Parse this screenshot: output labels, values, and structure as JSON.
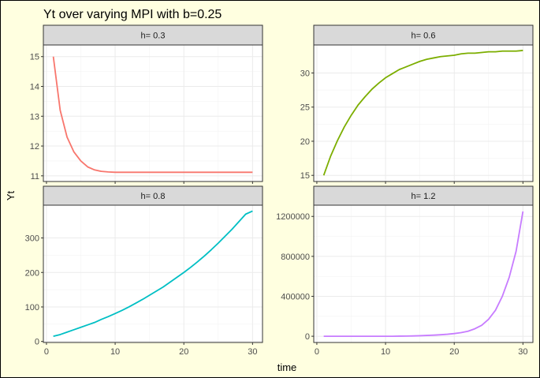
{
  "title": "Yt over varying MPI with b=0.25",
  "xlabel": "time",
  "ylabel": "Yt",
  "colors": {
    "strip_bg": "#d9d9d9",
    "panel_bg": "#ffffff",
    "grid": "#ebebeb",
    "page_bg": "#ffffe0"
  },
  "chart_data": [
    {
      "type": "line",
      "strip": "h= 0.3",
      "color": "#f8766d",
      "x": [
        1,
        2,
        3,
        4,
        5,
        6,
        7,
        8,
        9,
        10,
        11,
        12,
        13,
        14,
        15,
        16,
        17,
        18,
        19,
        20,
        21,
        22,
        23,
        24,
        25,
        26,
        27,
        28,
        29,
        30
      ],
      "values": [
        15.0,
        13.2,
        12.3,
        11.8,
        11.5,
        11.3,
        11.2,
        11.15,
        11.13,
        11.12,
        11.12,
        11.12,
        11.12,
        11.12,
        11.12,
        11.12,
        11.12,
        11.12,
        11.12,
        11.12,
        11.12,
        11.12,
        11.12,
        11.12,
        11.12,
        11.12,
        11.12,
        11.12,
        11.12,
        11.12
      ],
      "xlim": [
        -0.45,
        31.45
      ],
      "ylim": [
        10.81,
        15.39
      ],
      "xticks": [
        0,
        10,
        20,
        30
      ],
      "yticks": [
        11,
        12,
        13,
        14,
        15
      ],
      "ytick_labels": [
        "11",
        "12",
        "13",
        "14",
        "15"
      ],
      "show_x_ticklabels": false,
      "show_y_ticklabels": true
    },
    {
      "type": "line",
      "strip": "h= 0.6",
      "color": "#7cae00",
      "x": [
        1,
        2,
        3,
        4,
        5,
        6,
        7,
        8,
        9,
        10,
        11,
        12,
        13,
        14,
        15,
        16,
        17,
        18,
        19,
        20,
        21,
        22,
        23,
        24,
        25,
        26,
        27,
        28,
        29,
        30
      ],
      "values": [
        15.0,
        17.8,
        20.1,
        22.1,
        23.8,
        25.3,
        26.5,
        27.6,
        28.5,
        29.3,
        29.9,
        30.5,
        30.9,
        31.3,
        31.7,
        32.0,
        32.2,
        32.4,
        32.5,
        32.6,
        32.8,
        32.9,
        32.9,
        33.0,
        33.1,
        33.1,
        33.2,
        33.2,
        33.2,
        33.3
      ],
      "xlim": [
        -0.45,
        31.45
      ],
      "ylim": [
        14.1,
        34.1
      ],
      "xticks": [
        0,
        10,
        20,
        30
      ],
      "yticks": [
        15,
        20,
        25,
        30
      ],
      "ytick_labels": [
        "15",
        "20",
        "25",
        "30"
      ],
      "show_x_ticklabels": false,
      "show_y_ticklabels": true
    },
    {
      "type": "line",
      "strip": "h= 0.8",
      "color": "#00bfc4",
      "x": [
        1,
        2,
        3,
        4,
        5,
        6,
        7,
        8,
        9,
        10,
        11,
        12,
        13,
        14,
        15,
        16,
        17,
        18,
        19,
        20,
        21,
        22,
        23,
        24,
        25,
        26,
        27,
        28,
        29,
        30
      ],
      "values": [
        15,
        20,
        27,
        34,
        41,
        48,
        55,
        64,
        72,
        81,
        90,
        100,
        111,
        122,
        134,
        146,
        158,
        172,
        186,
        200,
        215,
        231,
        248,
        266,
        285,
        305,
        325,
        347,
        369,
        378
      ],
      "xlim": [
        -0.45,
        31.45
      ],
      "ylim": [
        -3,
        395
      ],
      "xticks": [
        0,
        10,
        20,
        30
      ],
      "yticks": [
        0,
        100,
        200,
        300
      ],
      "ytick_labels": [
        "0",
        "100",
        "200",
        "300"
      ],
      "show_x_ticklabels": true,
      "show_y_ticklabels": true
    },
    {
      "type": "line",
      "strip": "h= 1.2",
      "color": "#c77cff",
      "x": [
        1,
        2,
        3,
        4,
        5,
        6,
        7,
        8,
        9,
        10,
        11,
        12,
        13,
        14,
        15,
        16,
        17,
        18,
        19,
        20,
        21,
        22,
        23,
        24,
        25,
        26,
        27,
        28,
        29,
        30
      ],
      "values": [
        0,
        0,
        0,
        0,
        0,
        0,
        0,
        0,
        0,
        0,
        0,
        1000,
        2000,
        3000,
        5000,
        8000,
        11000,
        15000,
        20000,
        27000,
        36000,
        50000,
        75000,
        110000,
        170000,
        260000,
        400000,
        590000,
        850000,
        1250000
      ],
      "xlim": [
        -0.45,
        31.45
      ],
      "ylim": [
        -62500,
        1312500
      ],
      "xticks": [
        0,
        10,
        20,
        30
      ],
      "yticks": [
        0,
        400000,
        800000,
        1200000
      ],
      "ytick_labels": [
        "0",
        "400000",
        "800000",
        "1200000"
      ],
      "show_x_ticklabels": true,
      "show_y_ticklabels": true
    }
  ]
}
